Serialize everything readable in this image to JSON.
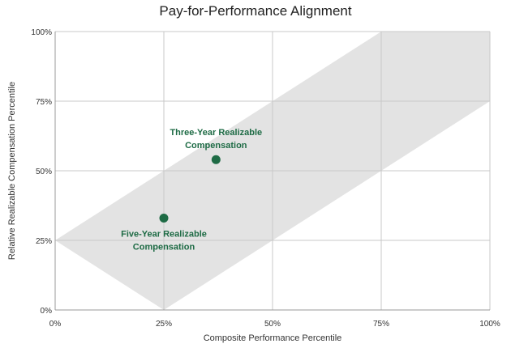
{
  "chart_data": {
    "type": "scatter",
    "title": "Pay-for-Performance Alignment",
    "xlabel": "Composite Performance Percentile",
    "ylabel": "Relative Realizable Compensation Percentile",
    "xlim": [
      0,
      100
    ],
    "ylim": [
      0,
      100
    ],
    "x_ticks": [
      "0%",
      "25%",
      "50%",
      "75%",
      "100%"
    ],
    "y_ticks": [
      "0%",
      "25%",
      "50%",
      "75%",
      "100%"
    ],
    "grid": true,
    "alignment_band": {
      "upper": [
        [
          0,
          25
        ],
        [
          75,
          100
        ],
        [
          100,
          100
        ]
      ],
      "lower": [
        [
          25,
          0
        ],
        [
          100,
          75
        ]
      ],
      "color": "#e3e3e3"
    },
    "points": [
      {
        "label": "Three-Year Realizable Compensation",
        "label_lines": [
          "Three-Year Realizable",
          "Compensation"
        ],
        "x": 37,
        "y": 54,
        "label_position": "above"
      },
      {
        "label": "Five-Year Realizable Compensation",
        "label_lines": [
          "Five-Year Realizable",
          "Compensation"
        ],
        "x": 25,
        "y": 33,
        "label_position": "below"
      }
    ],
    "point_color": "#1e6b45"
  }
}
